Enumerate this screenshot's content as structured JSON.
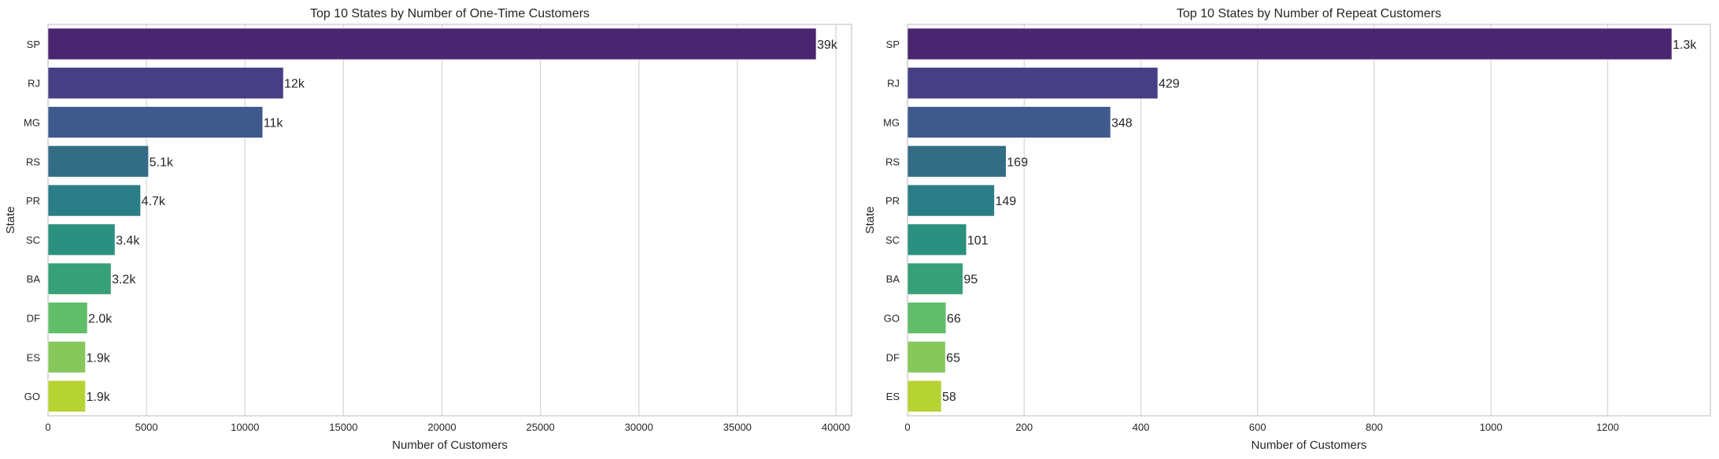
{
  "chart_data": [
    {
      "type": "bar",
      "orientation": "horizontal",
      "title": "Top 10 States by Number of One-Time Customers",
      "xlabel": "Number of Customers",
      "ylabel": "State",
      "categories": [
        "SP",
        "RJ",
        "MG",
        "RS",
        "PR",
        "SC",
        "BA",
        "DF",
        "ES",
        "GO"
      ],
      "values": [
        39000,
        11950,
        10900,
        5100,
        4700,
        3400,
        3200,
        2000,
        1900,
        1900
      ],
      "value_labels": [
        "39k",
        "12k",
        "11k",
        "5.1k",
        "4.7k",
        "3.4k",
        "3.2k",
        "2.0k",
        "1.9k",
        "1.9k"
      ],
      "xlim": [
        0,
        40800
      ],
      "xticks": [
        0,
        5000,
        10000,
        15000,
        20000,
        25000,
        30000,
        35000,
        40000
      ],
      "colors": [
        "#4b2670",
        "#473f84",
        "#3e5a8d",
        "#336c85",
        "#2a7d86",
        "#2b9080",
        "#37a079",
        "#62bd6b",
        "#87c75b",
        "#b6d334"
      ],
      "grid": "x"
    },
    {
      "type": "bar",
      "orientation": "horizontal",
      "title": "Top 10 States by Number of Repeat Customers",
      "xlabel": "Number of Customers",
      "ylabel": "State",
      "categories": [
        "SP",
        "RJ",
        "MG",
        "RS",
        "PR",
        "SC",
        "BA",
        "GO",
        "DF",
        "ES"
      ],
      "values": [
        1310,
        429,
        348,
        169,
        149,
        101,
        95,
        66,
        65,
        58
      ],
      "value_labels": [
        "1.3k",
        "429",
        "348",
        "169",
        "149",
        "101",
        "95",
        "66",
        "65",
        "58"
      ],
      "xlim": [
        0,
        1376
      ],
      "xticks": [
        0,
        200,
        400,
        600,
        800,
        1000,
        1200
      ],
      "colors": [
        "#4b2670",
        "#473f84",
        "#3e5a8d",
        "#336c85",
        "#2a7d86",
        "#2b9080",
        "#37a079",
        "#62bd6b",
        "#87c75b",
        "#b6d334"
      ],
      "grid": "x"
    }
  ]
}
